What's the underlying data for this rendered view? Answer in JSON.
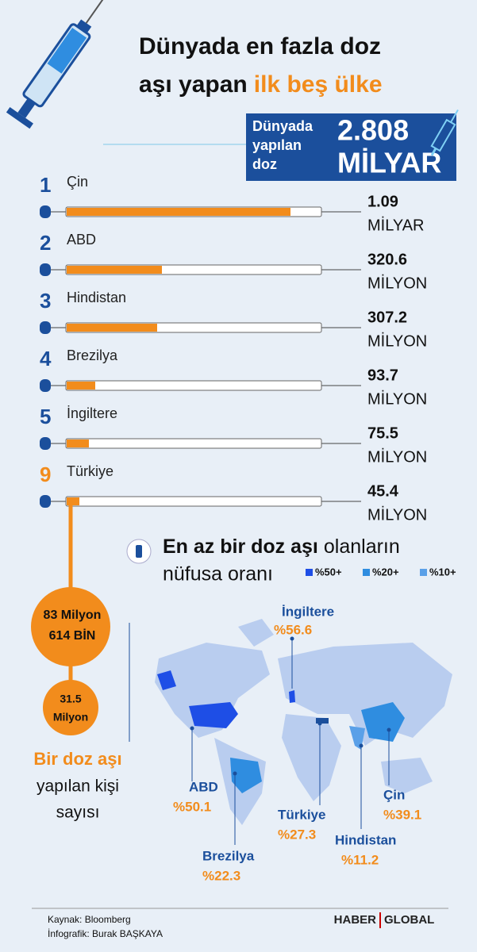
{
  "header": {
    "title_line1": "Dünyada en fazla doz",
    "title_line2_a": "aşı yapan",
    "title_line2_b": "ilk beş ülke"
  },
  "total": {
    "label": [
      "Dünyada",
      "yapılan",
      "doz"
    ],
    "number": "2.808",
    "unit": "MİLYAR"
  },
  "ranking": [
    {
      "rank": "1",
      "name": "Çin",
      "value": "1.09",
      "unit": "MİLYAR"
    },
    {
      "rank": "2",
      "name": "ABD",
      "value": "320.6",
      "unit": "MİLYON"
    },
    {
      "rank": "3",
      "name": "Hindistan",
      "value": "307.2",
      "unit": "MİLYON"
    },
    {
      "rank": "4",
      "name": "Brezilya",
      "value": "93.7",
      "unit": "MİLYON"
    },
    {
      "rank": "5",
      "name": "İngiltere",
      "value": "75.5",
      "unit": "MİLYON"
    },
    {
      "rank": "9",
      "name": "Türkiye",
      "value": "45.4",
      "unit": "MİLYON"
    }
  ],
  "turkey_people": {
    "first": [
      "83 Milyon",
      "614 BİN"
    ],
    "second": [
      "31.5",
      "Milyon"
    ],
    "caption": [
      "Bir doz aşı",
      "yapılan kişi",
      "sayısı"
    ]
  },
  "map": {
    "title_bold": "En az bir doz aşı",
    "title_rest": "olanların",
    "title_line2": "nüfusa oranı",
    "legend": [
      "%50+",
      "%20+",
      "%10+"
    ],
    "labels": [
      {
        "country": "İngiltere",
        "percent": "%56.6"
      },
      {
        "country": "ABD",
        "percent": "%50.1"
      },
      {
        "country": "Brezilya",
        "percent": "%22.3"
      },
      {
        "country": "Türkiye",
        "percent": "%27.3"
      },
      {
        "country": "Hindistan",
        "percent": "%11.2"
      },
      {
        "country": "Çin",
        "percent": "%39.1"
      }
    ]
  },
  "footer": {
    "source": "Kaynak: Bloomberg",
    "credit": "İnfografik: Burak BAŞKAYA",
    "brand_a": "HABER",
    "brand_b": "GLOBAL"
  }
}
